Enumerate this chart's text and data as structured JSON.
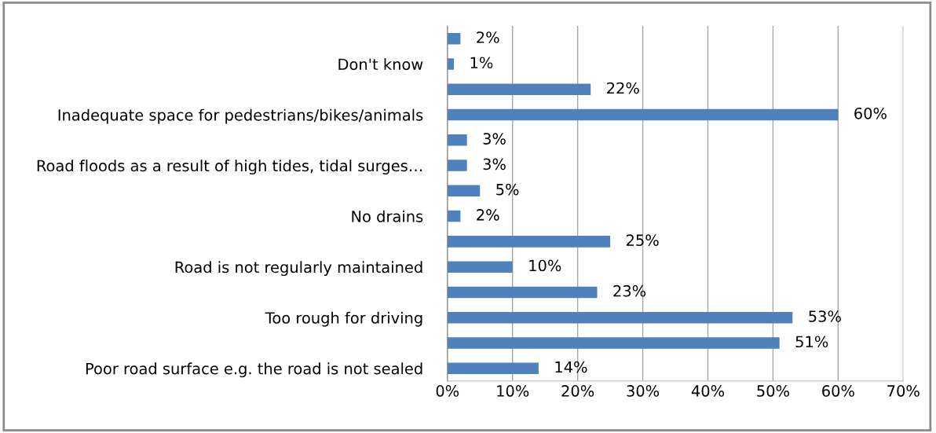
{
  "chart_data": {
    "type": "bar",
    "orientation": "horizontal",
    "categories": [
      null,
      "Don't know",
      null,
      "Inadequate space for pedestrians/bikes/animals",
      null,
      "Road floods as a result of high tides, tidal surges…",
      null,
      "No drains",
      null,
      "Road is not regularly maintained",
      null,
      "Too rough for driving",
      null,
      "Poor road surface e.g. the road is not sealed"
    ],
    "values": [
      2,
      1,
      22,
      60,
      3,
      3,
      5,
      2,
      25,
      10,
      23,
      53,
      51,
      14
    ],
    "value_labels": [
      "2%",
      "1%",
      "22%",
      "60%",
      "3%",
      "3%",
      "5%",
      "2%",
      "25%",
      "10%",
      "23%",
      "53%",
      "51%",
      "14%"
    ],
    "color": "#4f81bd",
    "xlim": [
      0,
      70
    ],
    "xticks": [
      {
        "value": 0,
        "label": "0%"
      },
      {
        "value": 10,
        "label": "10%"
      },
      {
        "value": 20,
        "label": "20%"
      },
      {
        "value": 30,
        "label": "30%"
      },
      {
        "value": 40,
        "label": "40%"
      },
      {
        "value": 50,
        "label": "50%"
      },
      {
        "value": 60,
        "label": "60%"
      },
      {
        "value": 70,
        "label": "70%"
      }
    ],
    "grid": "x",
    "legend": false
  }
}
